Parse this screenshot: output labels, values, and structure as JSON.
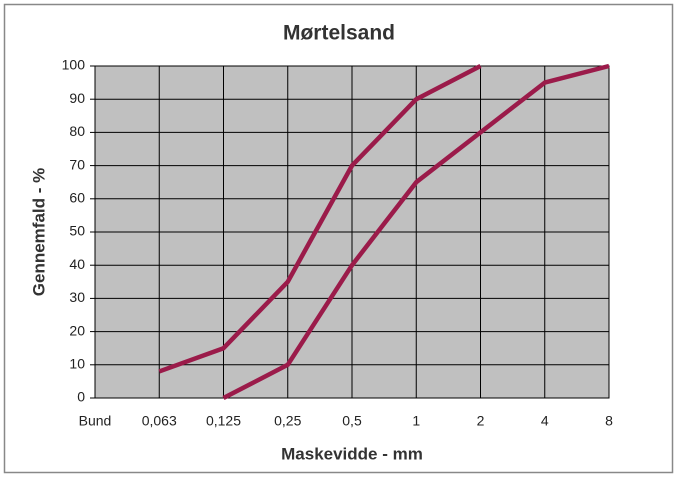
{
  "chart_data": {
    "type": "line",
    "title": "Mørtelsand",
    "x_label": "Maskevidde - mm",
    "y_label": "Gennemfald - %",
    "categories": [
      "Bund",
      "0,063",
      "0,125",
      "0,25",
      "0,5",
      "1",
      "2",
      "4",
      "8"
    ],
    "series": [
      {
        "color": "#9b1b4a",
        "values": [
          null,
          8,
          15,
          35,
          70,
          90,
          100,
          null,
          null
        ]
      },
      {
        "color": "#9b1b4a",
        "values": [
          null,
          null,
          0,
          10,
          40,
          65,
          80,
          95,
          100
        ]
      }
    ],
    "ylim": [
      0,
      100
    ],
    "yticks": [
      0,
      10,
      20,
      30,
      40,
      50,
      60,
      70,
      80,
      90,
      100
    ],
    "grid": true
  }
}
